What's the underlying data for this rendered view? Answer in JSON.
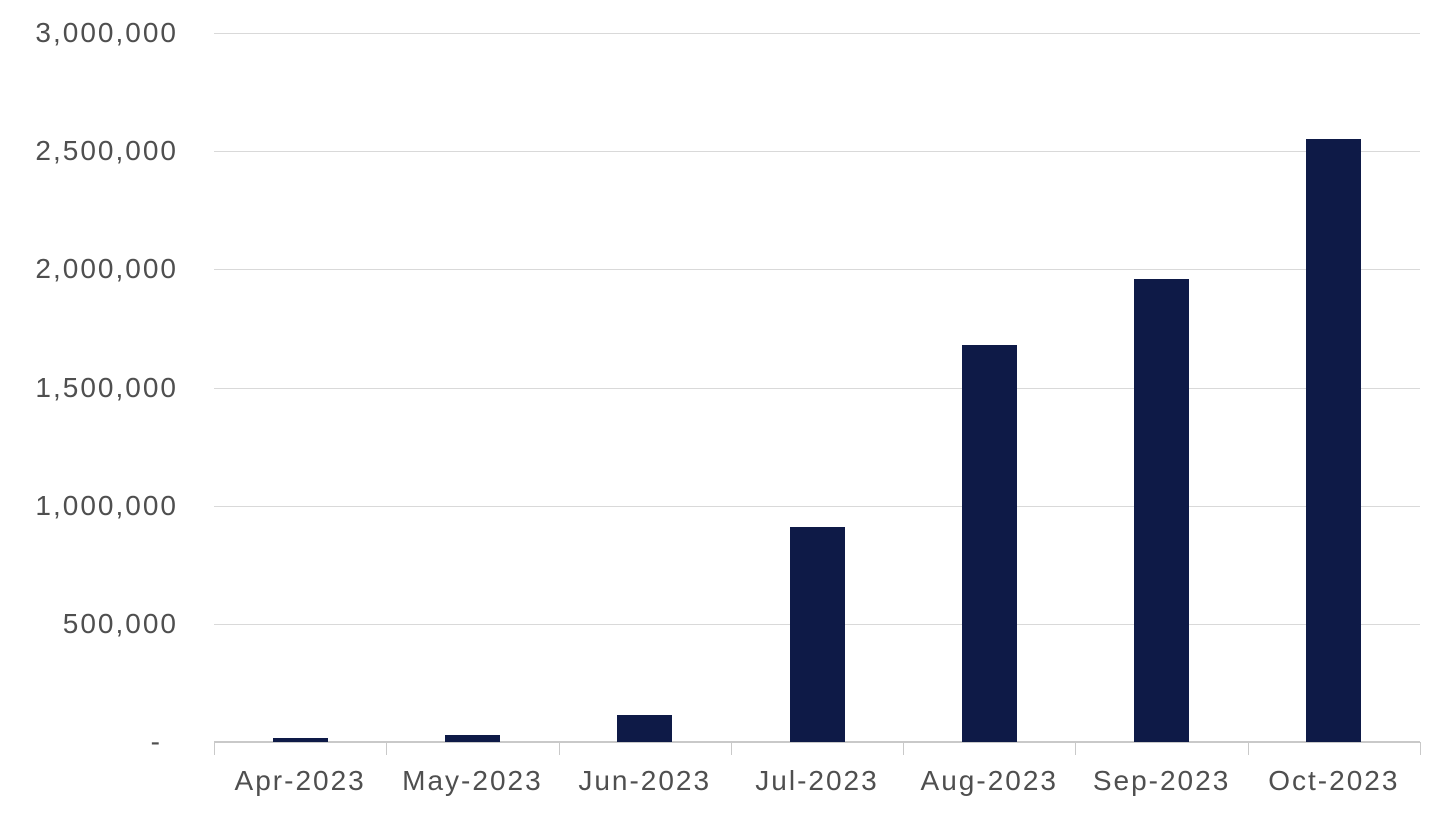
{
  "chart_data": {
    "type": "bar",
    "title": "",
    "xlabel": "",
    "ylabel": "",
    "categories": [
      "Apr-2023",
      "May-2023",
      "Jun-2023",
      "Jul-2023",
      "Aug-2023",
      "Sep-2023",
      "Oct-2023"
    ],
    "values": [
      15000,
      30000,
      115000,
      910000,
      1680000,
      1960000,
      2550000
    ],
    "ylim": [
      0,
      3000000
    ],
    "y_tick_interval": 500000,
    "y_tick_labels_top_to_bottom": [
      "3,000,000",
      "2,500,000",
      "2,000,000",
      "1,500,000",
      "1,000,000",
      "500,000",
      "-"
    ],
    "grid": "horizontal",
    "legend": "none",
    "colors": {
      "bar": "#0e1a47",
      "gridline": "#d9d9d9",
      "axis": "#c9c9c9",
      "label": "#4f4f4f",
      "background": "#ffffff"
    }
  }
}
